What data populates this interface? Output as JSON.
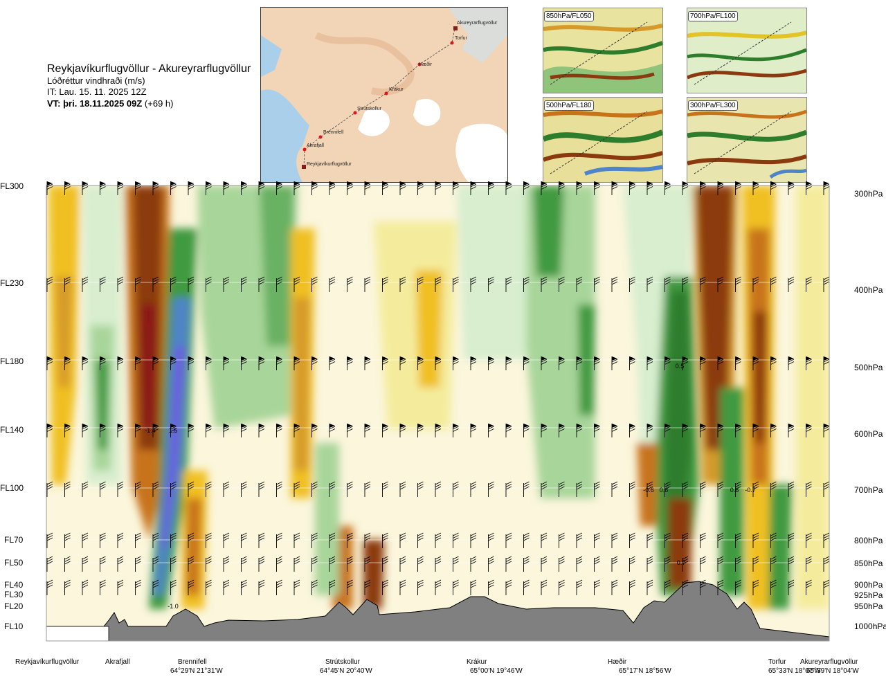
{
  "header": {
    "route": "Reykjavíkurflugvöllur - Akureyrarflugvöllur",
    "variable": "Lóðréttur vindhraði (m/s)",
    "init_time": "IT: Lau. 15. 11. 2025 12Z",
    "valid_label": "VT: þri. 18.11.2025 09Z",
    "valid_offset": " (+69 h)"
  },
  "map": {
    "waypoints": [
      "Reykjavíkurflugvöllur",
      "Akrafjall",
      "Brennifell",
      "Strútskollur",
      "Krákur",
      "Hæðir",
      "Torfur",
      "Akureyrarflugvöllur"
    ]
  },
  "thumbnails": [
    "850hPa/FL050",
    "700hPa/FL100",
    "500hPa/FL180",
    "300hPa/FL300"
  ],
  "left_axis": [
    "FL300",
    "FL230",
    "FL180",
    "FL140",
    "FL100",
    "FL70",
    "FL50",
    "FL40",
    "FL30",
    "FL20",
    "FL10"
  ],
  "right_axis": [
    "300hPa",
    "400hPa",
    "500hPa",
    "600hPa",
    "700hPa",
    "800hPa",
    "850hPa",
    "900hPa",
    "925hPa",
    "950hPa",
    "1000hPa"
  ],
  "locations": [
    {
      "name": "Reykjavíkurflugvöllur",
      "coord": ""
    },
    {
      "name": "Akrafjall",
      "coord": ""
    },
    {
      "name": "Brennifell",
      "coord": "64°29'N 21°31'W"
    },
    {
      "name": "Strútskollur",
      "coord": "64°45'N 20°40'W"
    },
    {
      "name": "Krákur",
      "coord": "65°00'N 19°46'W"
    },
    {
      "name": "Hæðir",
      "coord": "65°17'N 18°56'W"
    },
    {
      "name": "Torfur",
      "coord": "65°33'N 18°07'W"
    },
    {
      "name": "Akureyrarflugvöllur",
      "coord": "65°39'N 18°04'W"
    }
  ],
  "contour_labels": [
    "-1.4",
    "1.5",
    "-1.0",
    "0.5",
    "-0.6",
    "0.6",
    "0.7",
    "0.6",
    "-0.7"
  ],
  "chart_data": {
    "type": "heatmap",
    "title": "Lóðréttur vindhraði (m/s)",
    "x_categories": [
      "Reykjavíkurflugvöllur",
      "Akrafjall",
      "Brennifell",
      "Strútskollur",
      "Krákur",
      "Hæðir",
      "Torfur",
      "Akureyrarflugvöllur"
    ],
    "y_flight_levels": [
      "FL10",
      "FL20",
      "FL30",
      "FL40",
      "FL50",
      "FL70",
      "FL100",
      "FL140",
      "FL180",
      "FL230",
      "FL300"
    ],
    "y_pressure_hpa": [
      1000,
      950,
      925,
      900,
      850,
      800,
      700,
      600,
      500,
      400,
      300
    ],
    "labelled_values_m_s": [
      {
        "near": "Akrafjall–Brennifell",
        "level": "FL140",
        "value": -1.4
      },
      {
        "near": "Brennifell",
        "level": "FL140",
        "value": 1.5
      },
      {
        "near": "Brennifell",
        "level": "FL20",
        "value": -1.0
      },
      {
        "near": "Hæðir–Torfur",
        "level": "FL180",
        "value": 0.5
      },
      {
        "near": "Hæðir",
        "level": "FL100",
        "value": -0.6
      },
      {
        "near": "Hæðir",
        "level": "FL100",
        "value": 0.6
      },
      {
        "near": "Hæðir",
        "level": "FL50",
        "value": 0.7
      },
      {
        "near": "Torfur",
        "level": "FL100",
        "value": 0.6
      },
      {
        "near": "Torfur",
        "level": "FL100",
        "value": -0.7
      }
    ],
    "colors": {
      "strong_down": "#8b3a10",
      "down": "#c8731a",
      "weak_down": "#f0c020",
      "very_weak_down": "#f4ec9c",
      "neutral": "#fbf6dc",
      "very_weak_up": "#d8eecf",
      "weak_up": "#a8d59a",
      "up": "#3f9a3f",
      "strong_up": "#4f84c8",
      "very_strong_up": "#6c5ce0",
      "terrain": "#808080"
    }
  }
}
